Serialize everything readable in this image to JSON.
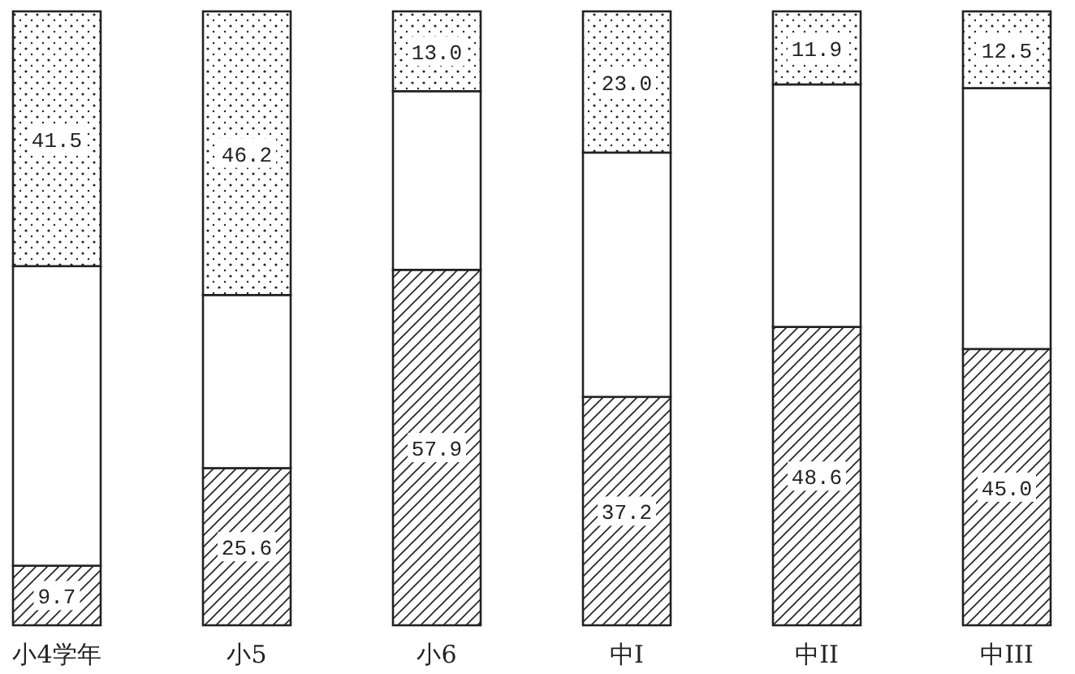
{
  "chart_data": {
    "type": "bar",
    "stacked": true,
    "categories": [
      "小4学年",
      "小5",
      "小6",
      "中I",
      "中II",
      "中III"
    ],
    "ylim": [
      0,
      100
    ],
    "series": [
      {
        "color": "#222222",
        "values": [
          9.7,
          25.6,
          57.9,
          37.2,
          48.6,
          45.0
        ],
        "value_labels": [
          "9.7",
          "25.6",
          "57.9",
          "37.2",
          "48.6",
          "45.0"
        ]
      },
      {
        "color": "#ffffff",
        "values": [
          48.8,
          28.2,
          29.1,
          39.8,
          39.5,
          42.5
        ]
      },
      {
        "color": "#222222",
        "values": [
          41.5,
          46.2,
          13.0,
          23.0,
          11.9,
          12.5
        ],
        "value_labels": [
          "41.5",
          "46.2",
          "13.0",
          "23.0",
          "11.9",
          "12.5"
        ]
      }
    ]
  }
}
